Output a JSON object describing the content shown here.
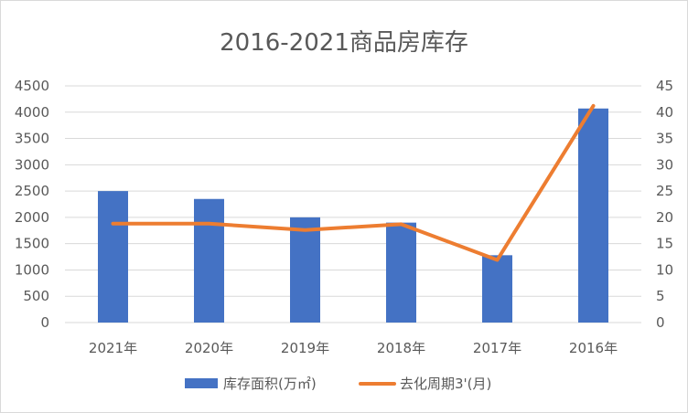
{
  "chart_data": {
    "type": "bar",
    "title": "2016-2021商品房库存",
    "categories": [
      "2021年",
      "2020年",
      "2019年",
      "2018年",
      "2017年",
      "2016年"
    ],
    "series": [
      {
        "name": "库存面积(万㎡)",
        "type": "bar",
        "axis": "left",
        "color": "#4472C4",
        "values": [
          2500,
          2350,
          2000,
          1900,
          1280,
          4070
        ]
      },
      {
        "name": "去化周期3'(月)",
        "type": "line",
        "axis": "right",
        "color": "#ED7D31",
        "values": [
          18.8,
          18.8,
          17.6,
          18.7,
          11.9,
          41.2
        ]
      }
    ],
    "ylim_left": [
      0,
      4500
    ],
    "yticks_left": [
      "0",
      "500",
      "1000",
      "1500",
      "2000",
      "2500",
      "3000",
      "3500",
      "4000",
      "4500"
    ],
    "ylim_right": [
      0,
      45
    ],
    "yticks_right": [
      "0",
      "5",
      "10",
      "15",
      "20",
      "25",
      "30",
      "35",
      "40",
      "45"
    ],
    "grid": true,
    "legend": "bottom"
  }
}
